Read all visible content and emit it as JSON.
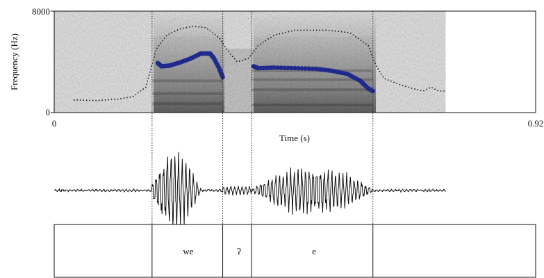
{
  "chart_data": {
    "type": "line",
    "title": "",
    "xlabel": "Time (s)",
    "ylabel": "Frequency (Hz)",
    "xlim": [
      0,
      0.92
    ],
    "ylim": [
      0,
      8000
    ],
    "x_ticks": [
      "0",
      "0.92"
    ],
    "y_ticks": [
      "0",
      "8000"
    ],
    "spectrogram_extent_s": [
      0,
      0.748
    ],
    "boundaries_s": [
      0.187,
      0.322,
      0.377,
      0.609
    ],
    "intensity_contour": [
      [
        0.037,
        1000
      ],
      [
        0.08,
        950
      ],
      [
        0.12,
        1050
      ],
      [
        0.15,
        1250
      ],
      [
        0.175,
        2000
      ],
      [
        0.185,
        3500
      ],
      [
        0.195,
        5000
      ],
      [
        0.215,
        6100
      ],
      [
        0.24,
        6600
      ],
      [
        0.265,
        6800
      ],
      [
        0.29,
        6700
      ],
      [
        0.315,
        5900
      ],
      [
        0.335,
        4700
      ],
      [
        0.35,
        4000
      ],
      [
        0.372,
        4300
      ],
      [
        0.39,
        5300
      ],
      [
        0.42,
        6100
      ],
      [
        0.46,
        6500
      ],
      [
        0.52,
        6500
      ],
      [
        0.565,
        6300
      ],
      [
        0.6,
        5300
      ],
      [
        0.615,
        3700
      ],
      [
        0.63,
        2700
      ],
      [
        0.66,
        2200
      ],
      [
        0.685,
        1900
      ],
      [
        0.705,
        1700
      ],
      [
        0.72,
        2000
      ],
      [
        0.735,
        1700
      ],
      [
        0.75,
        1700
      ]
    ],
    "series": [
      {
        "color": "#1f2a8c",
        "segments": [
          [
            [
              0.198,
              3900
            ],
            [
              0.205,
              3650
            ],
            [
              0.22,
              3700
            ],
            [
              0.24,
              3950
            ],
            [
              0.26,
              4250
            ],
            [
              0.28,
              4650
            ],
            [
              0.298,
              4650
            ],
            [
              0.305,
              4300
            ],
            [
              0.315,
              3500
            ],
            [
              0.322,
              2800
            ]
          ],
          [
            [
              0.381,
              3650
            ],
            [
              0.39,
              3500
            ],
            [
              0.42,
              3550
            ],
            [
              0.46,
              3500
            ],
            [
              0.5,
              3450
            ],
            [
              0.53,
              3300
            ],
            [
              0.56,
              3050
            ],
            [
              0.585,
              2500
            ],
            [
              0.6,
              1900
            ],
            [
              0.609,
              1700
            ]
          ]
        ]
      }
    ]
  },
  "tiers": [
    {
      "label": "we"
    },
    {
      "label": "ʔ"
    },
    {
      "label": "e"
    }
  ],
  "colors": {
    "pitch": "#1f2a8c",
    "intensity": "#111111",
    "spectrogram_bg": "#d9d9d9"
  }
}
